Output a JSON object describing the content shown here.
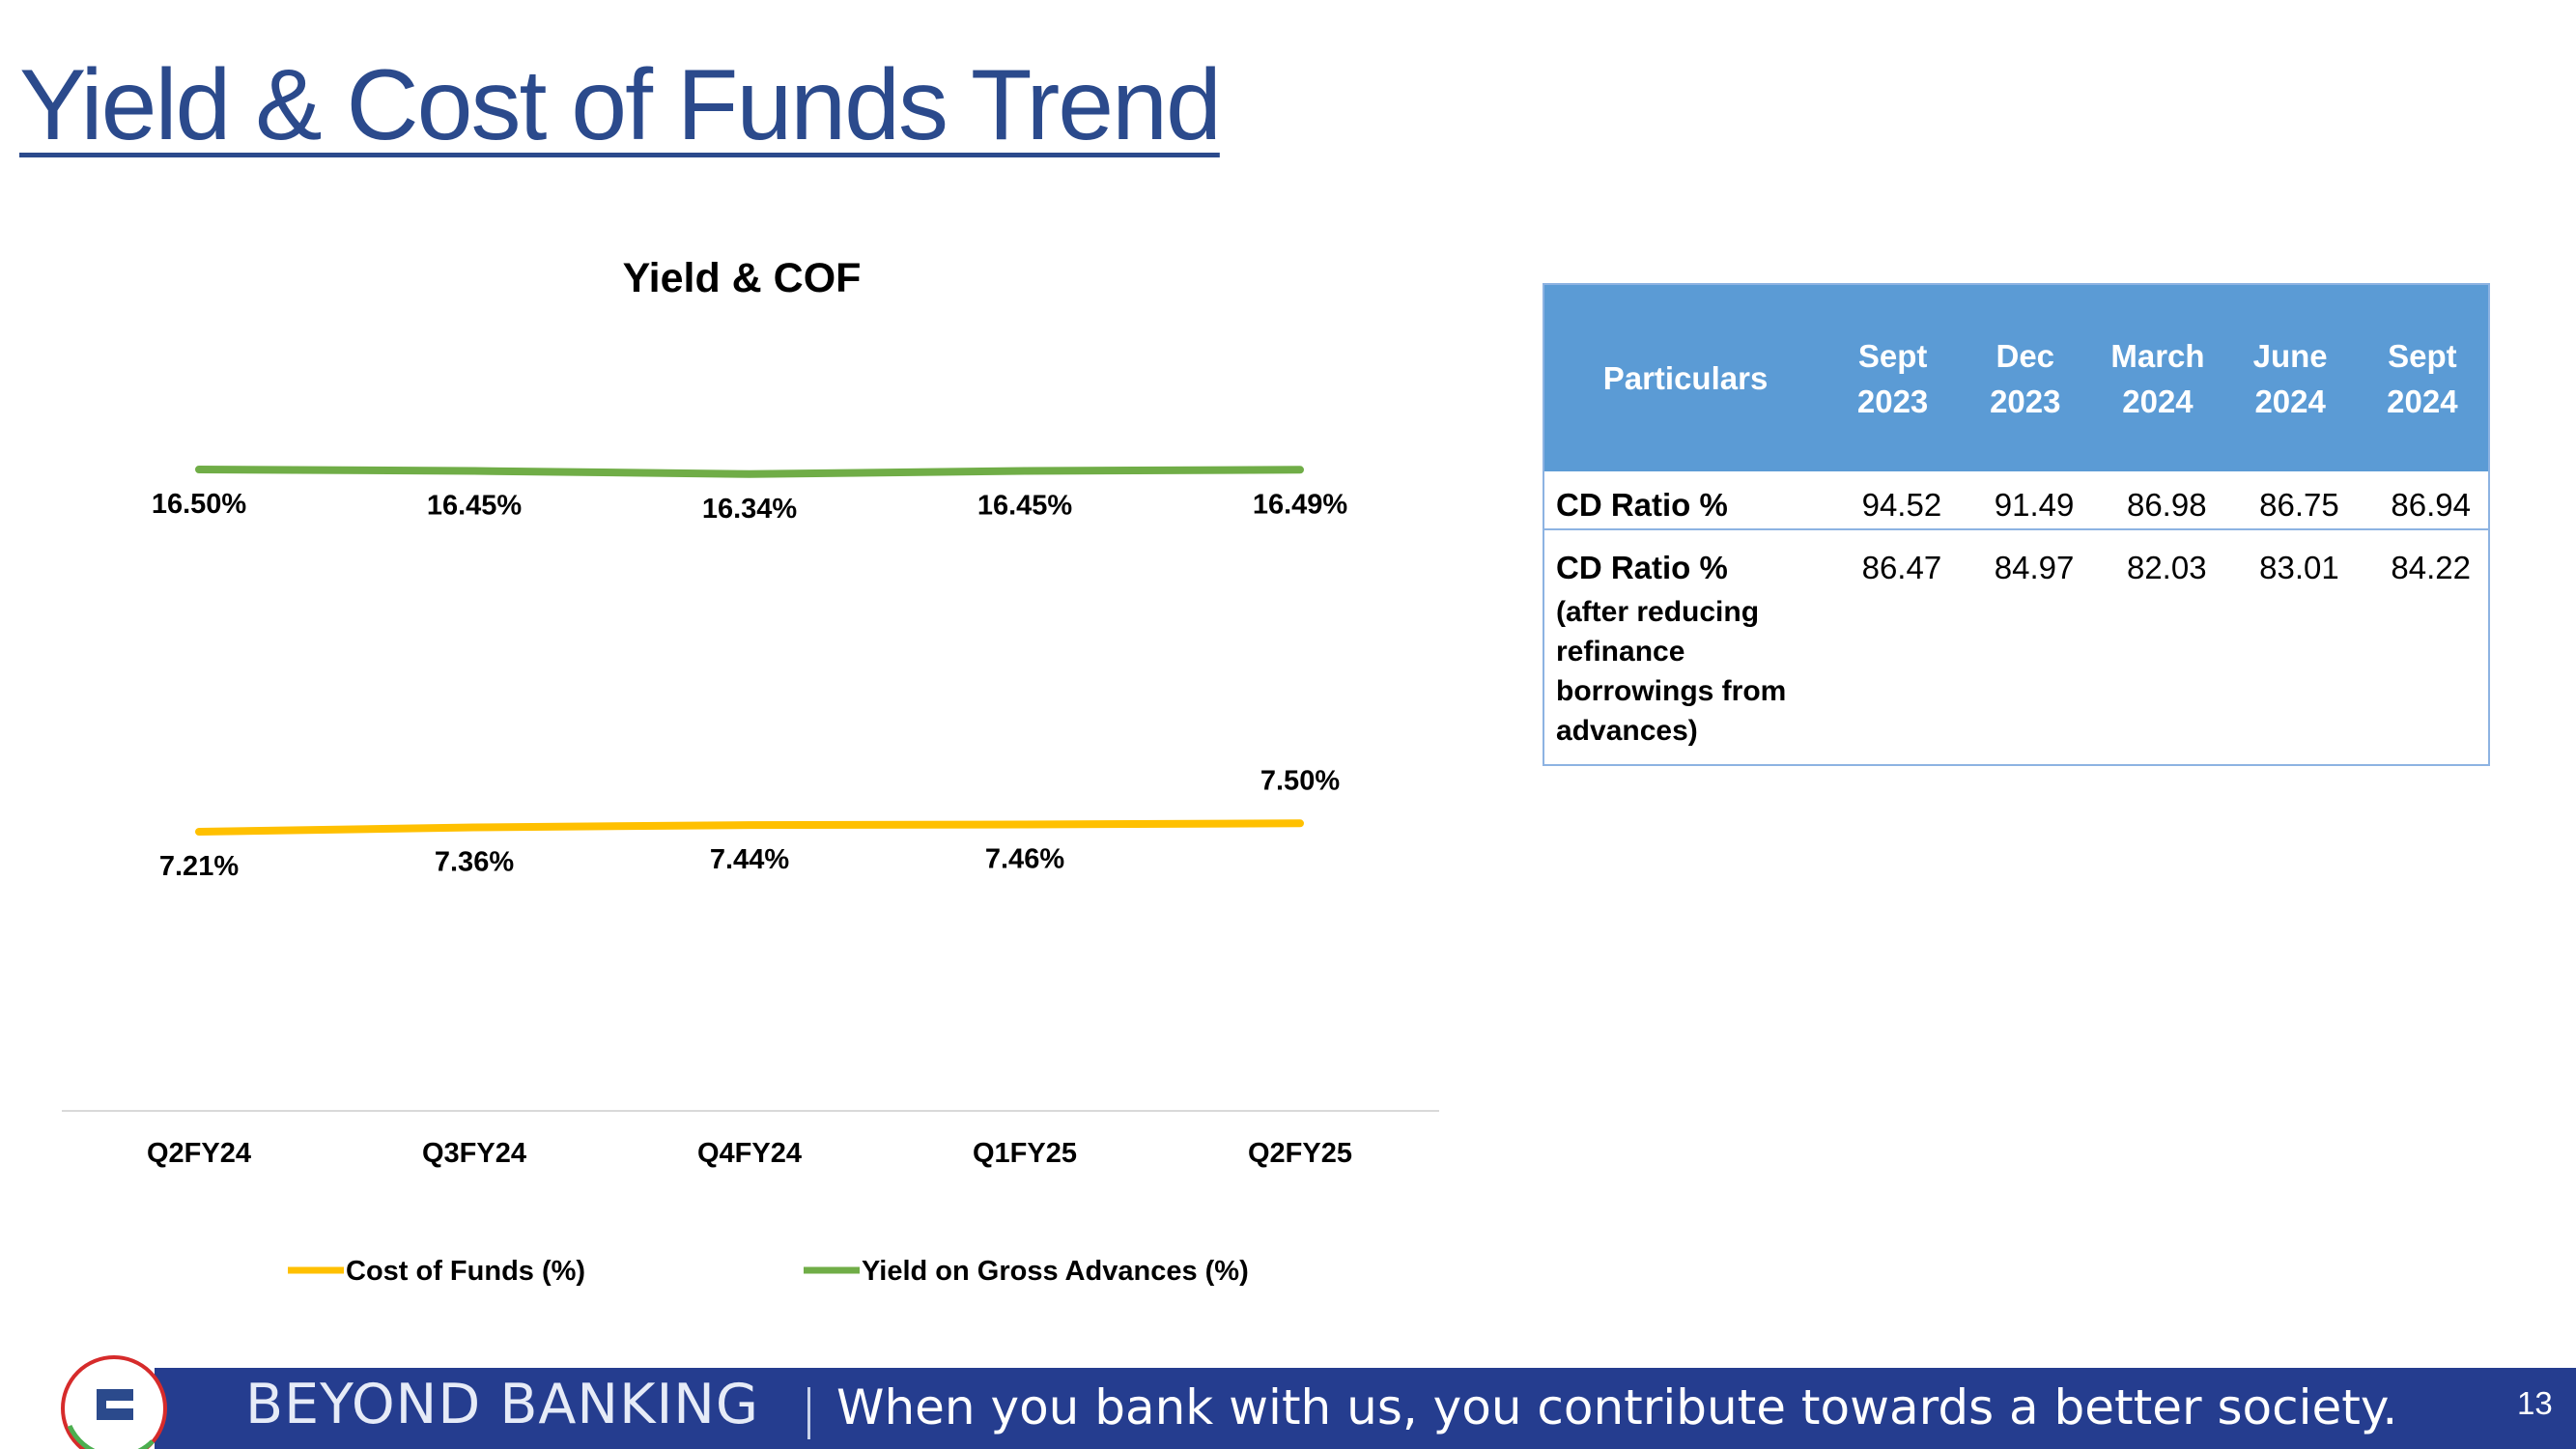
{
  "page": {
    "title": "Yield & Cost of Funds Trend",
    "page_number": "13"
  },
  "chart_data": {
    "type": "line",
    "title": "Yield & COF",
    "categories": [
      "Q2FY24",
      "Q3FY24",
      "Q4FY24",
      "Q1FY25",
      "Q2FY25"
    ],
    "series": [
      {
        "name": "Cost of Funds (%)",
        "values": [
          7.21,
          7.36,
          7.44,
          7.46,
          7.5
        ],
        "labels": [
          "7.21%",
          "7.36%",
          "7.44%",
          "7.46%",
          "7.50%"
        ],
        "color": "#ffc000"
      },
      {
        "name": "Yield on Gross Advances (%)",
        "values": [
          16.5,
          16.45,
          16.34,
          16.45,
          16.49
        ],
        "labels": [
          "16.50%",
          "16.45%",
          "16.34%",
          "16.45%",
          "16.49%"
        ],
        "color": "#70ad47"
      }
    ],
    "xlabel": "",
    "ylabel": "",
    "grid": false,
    "legend_position": "bottom"
  },
  "table": {
    "headers": [
      "Particulars",
      "Sept\n2023",
      "Dec\n2023",
      "March\n2024",
      "June\n2024",
      "Sept\n2024"
    ],
    "rows": [
      {
        "label": "CD Ratio %",
        "sublabel": "",
        "values": [
          "94.52",
          "91.49",
          "86.98",
          "86.75",
          "86.94"
        ]
      },
      {
        "label": "CD Ratio %",
        "sublabel": "(after reducing refinance borrowings from advances)",
        "values": [
          "86.47",
          "84.97",
          "82.03",
          "83.01",
          "84.22"
        ]
      }
    ],
    "header_color": "#5b9bd5"
  },
  "footer": {
    "brand": "BEYOND BANKING",
    "tagline": "When you bank with us, you contribute towards a better society.",
    "bar_color": "#253d8f"
  }
}
